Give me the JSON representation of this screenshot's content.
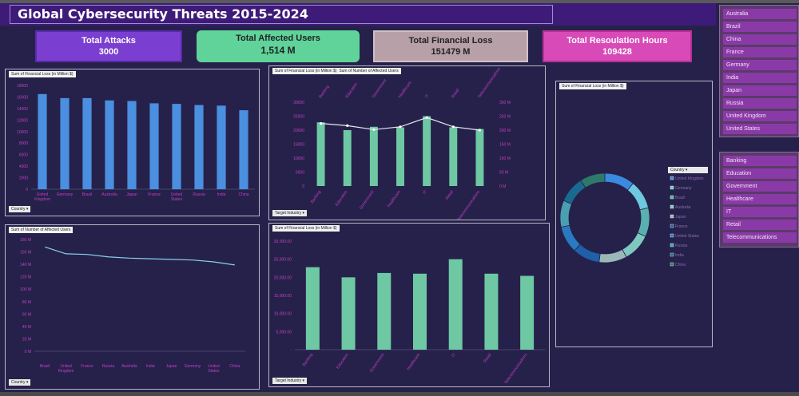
{
  "dashboard": {
    "title": "Global Cybersecurity Threats 2015-2024"
  },
  "kpis": [
    {
      "label": "Total Attacks",
      "value": "3000"
    },
    {
      "label": "Total Affected Users",
      "value": "1,514 M"
    },
    {
      "label": "Total Financial Loss",
      "value": "151479  M"
    },
    {
      "label": "Total Resoulation Hours",
      "value": "109428"
    }
  ],
  "filters": {
    "country": "Country",
    "target_industry": "Target Industry"
  },
  "slicers": {
    "country": [
      "Australia",
      "Brazil",
      "China",
      "France",
      "Germany",
      "India",
      "Japan",
      "Russia",
      "United Kingdom",
      "United States"
    ],
    "industry": [
      "Banking",
      "Education",
      "Government",
      "Healthcare",
      "IT",
      "Retail",
      "Telecommunications"
    ]
  },
  "colors": {
    "bar_blue": "#4a8fe0",
    "bar_green": "#6ec8a4",
    "line": "#8ad0f0",
    "axis_text": "#c040c0"
  },
  "chart_data": [
    {
      "type": "bar",
      "title": "Sum of Financial Loss (in Million $)",
      "categories": [
        "United Kingdom",
        "Germany",
        "Brazil",
        "Australia",
        "Japan",
        "France",
        "United States",
        "Russia",
        "India",
        "China"
      ],
      "values": [
        16500,
        15800,
        15800,
        15400,
        15300,
        14900,
        14800,
        14600,
        14500,
        13700
      ],
      "ylim": [
        0,
        18000
      ],
      "yticks": [
        "0",
        "2000",
        "4000",
        "6000",
        "8000",
        "10000",
        "12000",
        "14000",
        "16000",
        "18000"
      ]
    },
    {
      "type": "bar+line",
      "legend": [
        "Sum of Financial Loss (in Million $)",
        "Sum of Number of Affected Users"
      ],
      "categories": [
        "Banking",
        "Education",
        "Government",
        "Healthcare",
        "IT",
        "Retail",
        "Telecommunications"
      ],
      "bars": [
        22800,
        20000,
        21200,
        21000,
        25000,
        21000,
        20400
      ],
      "line": [
        224,
        216,
        202,
        212,
        245,
        212,
        200
      ],
      "ylim_left": [
        0,
        30000
      ],
      "ylim_right": [
        0,
        300
      ],
      "yticks_left": [
        "0",
        "5000",
        "10000",
        "15000",
        "20000",
        "25000",
        "30000"
      ],
      "yticks_right": [
        "0 M",
        "50 M",
        "100 M",
        "150 M",
        "200 M",
        "250 M",
        "300 M"
      ]
    },
    {
      "type": "pie",
      "title": "Sum of Financial Loss (in Million $)",
      "legend_title": "Country",
      "categories": [
        "United Kingdom",
        "Germany",
        "Brazil",
        "Australia",
        "Japan",
        "France",
        "United States",
        "Russia",
        "India",
        "China"
      ],
      "values": [
        16500,
        15800,
        15800,
        15400,
        15300,
        14900,
        14800,
        14600,
        14500,
        13700
      ],
      "colors": [
        "#3a8ae0",
        "#6ec8e0",
        "#5ab0b0",
        "#7fc8c0",
        "#9ab8b8",
        "#1f5fa8",
        "#2a7ac0",
        "#4aa0b0",
        "#1a6a90",
        "#2e7a6a"
      ]
    },
    {
      "type": "line",
      "title": "Sum of Number of Affected Users",
      "categories": [
        "Brazil",
        "United Kingdom",
        "France",
        "Russia",
        "Australia",
        "India",
        "Japan",
        "Germany",
        "United States",
        "China"
      ],
      "values": [
        168,
        157,
        156,
        152,
        150,
        149,
        148,
        147,
        144,
        139
      ],
      "ylim": [
        0,
        180
      ],
      "yticks": [
        "0 M",
        "20 M",
        "40 M",
        "60 M",
        "80 M",
        "100 M",
        "120 M",
        "140 M",
        "160 M",
        "180 M"
      ]
    },
    {
      "type": "bar",
      "title": "Sum of Financial Loss (in Million $)",
      "categories": [
        "Banking",
        "Education",
        "Government",
        "Healthcare",
        "IT",
        "Retail",
        "Telecommunications"
      ],
      "values": [
        22800,
        20000,
        21200,
        21000,
        25000,
        21000,
        20400
      ],
      "ylim": [
        0,
        30000
      ],
      "yticks": [
        "-",
        "5,000.00",
        "10,000.00",
        "15,000.00",
        "20,000.00",
        "25,000.00",
        "30,000.00"
      ]
    }
  ]
}
